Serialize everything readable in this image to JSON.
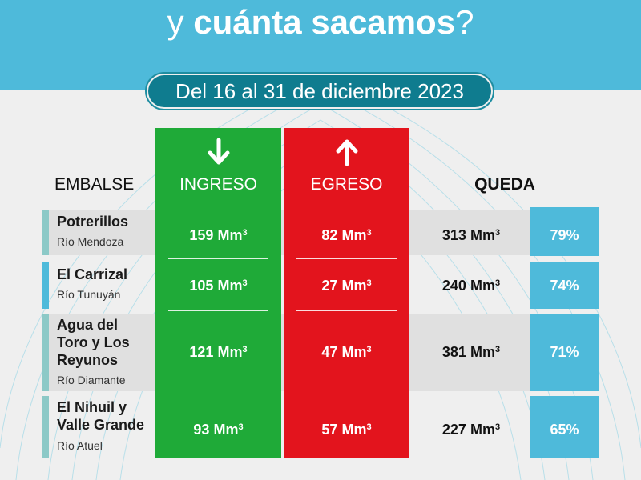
{
  "header": {
    "title_prefix": "y",
    "title_bold": "cuánta sacamos",
    "title_suffix": "?"
  },
  "date_range": "Del 16 al 31 de diciembre 2023",
  "columns": {
    "embalse": "EMBALSE",
    "ingreso": "INGRESO",
    "egreso": "EGRESO",
    "queda": "QUEDA"
  },
  "icons": {
    "ingreso": "arrow-down-icon",
    "egreso": "arrow-up-icon"
  },
  "unit": "Mm",
  "unit_exponent": "3",
  "colors": {
    "header": "#4ebada",
    "date_pill": "#0f7c8f",
    "ingreso": "#1faa38",
    "egreso": "#e3141d",
    "queda_pct": "#4ebada",
    "row_marker_light": "#8cc9c7",
    "row_marker_blue": "#4ebada",
    "row_shade": "#e0e0e0"
  },
  "rows": [
    {
      "name": [
        "Potrerillos"
      ],
      "river": "Río Mendoza",
      "ingreso": "159",
      "egreso": "82",
      "queda": "313",
      "pct": "79%"
    },
    {
      "name": [
        "El Carrizal"
      ],
      "river": "Río Tunuyán",
      "ingreso": "105",
      "egreso": "27",
      "queda": "240",
      "pct": "74%"
    },
    {
      "name": [
        "Agua del",
        "Toro y Los",
        "Reyunos"
      ],
      "river": "Río Diamante",
      "ingreso": "121",
      "egreso": "47",
      "queda": "381",
      "pct": "71%"
    },
    {
      "name": [
        "El Nihuil y",
        "Valle Grande"
      ],
      "river": "Río Atuel",
      "ingreso": "93",
      "egreso": "57",
      "queda": "227",
      "pct": "65%"
    }
  ]
}
